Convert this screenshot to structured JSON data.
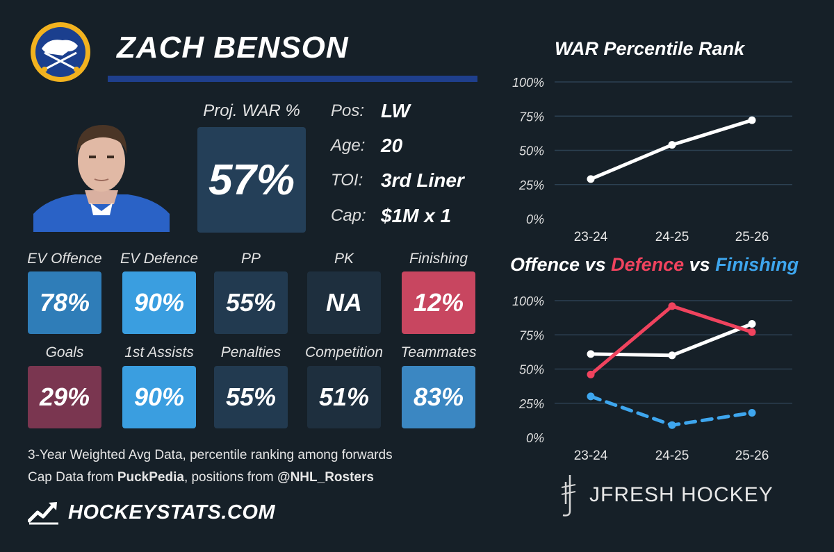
{
  "player": {
    "name": "ZACH BENSON",
    "proj_war_label": "Proj. WAR %",
    "proj_war_value": "57%",
    "info": [
      {
        "label": "Pos:",
        "value": "LW"
      },
      {
        "label": "Age:",
        "value": "20"
      },
      {
        "label": "TOI:",
        "value": "3rd Liner"
      },
      {
        "label": "Cap:",
        "value": "$1M x 1"
      }
    ]
  },
  "stats": [
    {
      "label": "EV Offence",
      "value": "78%",
      "color": "#2f7db8"
    },
    {
      "label": "EV Defence",
      "value": "90%",
      "color": "#3a9ee0"
    },
    {
      "label": "PP",
      "value": "55%",
      "color": "#223a50"
    },
    {
      "label": "PK",
      "value": "NA",
      "color": "#1e2f3e"
    },
    {
      "label": "Finishing",
      "value": "12%",
      "color": "#c84660"
    },
    {
      "label": "Goals",
      "value": "29%",
      "color": "#7a3650"
    },
    {
      "label": "1st Assists",
      "value": "90%",
      "color": "#3a9ee0"
    },
    {
      "label": "Penalties",
      "value": "55%",
      "color": "#223a50"
    },
    {
      "label": "Competition",
      "value": "51%",
      "color": "#1e2f3e"
    },
    {
      "label": "Teammates",
      "value": "83%",
      "color": "#3b87c2"
    }
  ],
  "footnotes": {
    "line1": "3-Year Weighted Avg Data, percentile ranking among forwards",
    "line2_prefix": "Cap Data from ",
    "line2_source": "PuckPedia",
    "line2_mid": ", positions from ",
    "line2_handle": "@NHL_Rosters"
  },
  "brands": {
    "hockeystats": "HOCKEYSTATS.COM",
    "jfresh": "JFRESH HOCKEY"
  },
  "colors": {
    "background": "#162028",
    "offence": "#ffffff",
    "defence": "#f0435e",
    "finishing": "#3ea6ee"
  },
  "icons": {
    "team_logo": "sabres-logo-icon",
    "player_photo": "player-headshot-icon",
    "hockeystats_logo": "hockeystats-logo-icon",
    "jfresh_logo": "jfresh-logo-icon"
  },
  "chart_data": [
    {
      "type": "line",
      "title": "WAR Percentile Rank",
      "categories": [
        "23-24",
        "24-25",
        "25-26"
      ],
      "yticks": [
        "0%",
        "25%",
        "50%",
        "75%",
        "100%"
      ],
      "ylim": [
        0,
        100
      ],
      "grid": true,
      "series": [
        {
          "values": [
            29,
            54,
            72
          ],
          "color": "#ffffff",
          "dashed": false
        }
      ]
    },
    {
      "type": "line",
      "title_parts": [
        {
          "text": "Offence",
          "color": "#ffffff"
        },
        {
          "text": " vs ",
          "color": "#ffffff"
        },
        {
          "text": "Defence",
          "color": "#f0435e"
        },
        {
          "text": " vs ",
          "color": "#ffffff"
        },
        {
          "text": "Finishing",
          "color": "#3ea6ee"
        }
      ],
      "categories": [
        "23-24",
        "24-25",
        "25-26"
      ],
      "yticks": [
        "0%",
        "25%",
        "50%",
        "75%",
        "100%"
      ],
      "ylim": [
        0,
        100
      ],
      "grid": true,
      "series": [
        {
          "values": [
            61,
            60,
            83
          ],
          "color": "#ffffff",
          "dashed": false
        },
        {
          "values": [
            46,
            96,
            77
          ],
          "color": "#f0435e",
          "dashed": false
        },
        {
          "values": [
            30,
            9,
            18
          ],
          "color": "#3ea6ee",
          "dashed": true
        }
      ]
    }
  ]
}
